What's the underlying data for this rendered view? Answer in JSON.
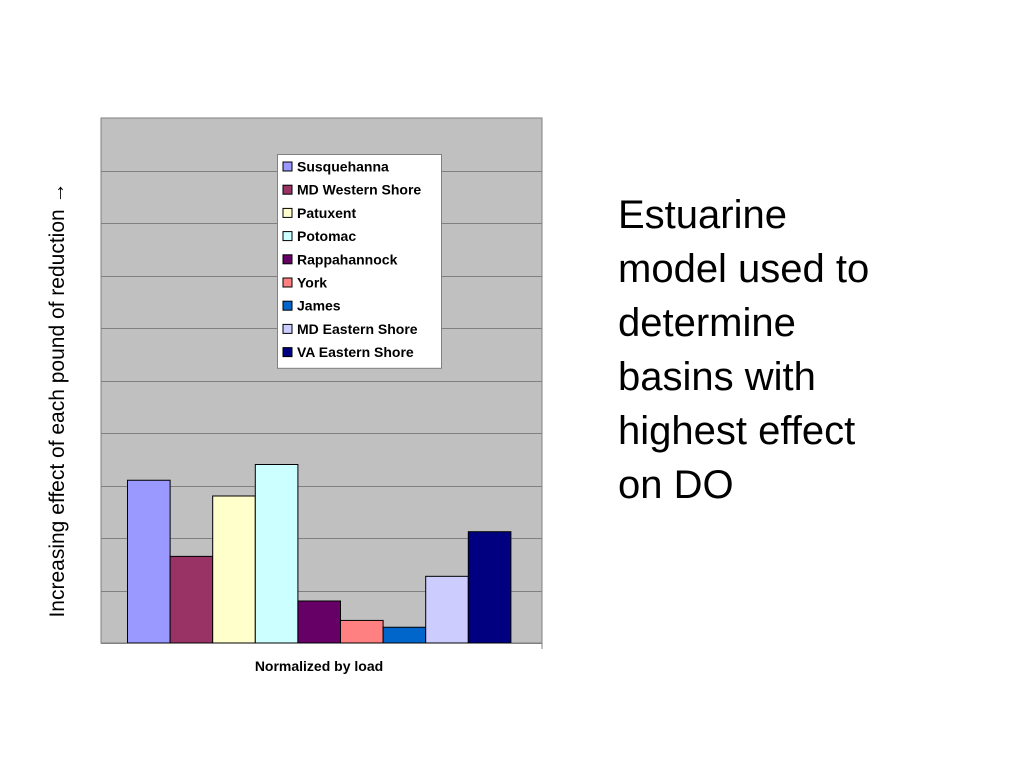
{
  "side_text": {
    "lines": [
      "Estuarine",
      "model used to",
      "determine",
      "basins with",
      "highest effect",
      "on DO"
    ]
  },
  "chart_data": {
    "type": "bar",
    "categories": [
      "Normalized by load"
    ],
    "xlabel": "Normalized by load",
    "ylabel": "Increasing effect of each pound of reduction →",
    "ylim": [
      0,
      10
    ],
    "grid": true,
    "legend_position": "top-center",
    "background_color": "#c0c0c0",
    "series": [
      {
        "name": "Susquehanna",
        "values": [
          3.1
        ],
        "color": "#9999ff"
      },
      {
        "name": "MD Western Shore",
        "values": [
          1.65
        ],
        "color": "#993366"
      },
      {
        "name": "Patuxent",
        "values": [
          2.8
        ],
        "color": "#ffffcc"
      },
      {
        "name": "Potomac",
        "values": [
          3.4
        ],
        "color": "#ccffff"
      },
      {
        "name": "Rappahannock",
        "values": [
          0.8
        ],
        "color": "#660066"
      },
      {
        "name": "York",
        "values": [
          0.43
        ],
        "color": "#ff8080"
      },
      {
        "name": "James",
        "values": [
          0.3
        ],
        "color": "#0066cc"
      },
      {
        "name": "MD Eastern Shore",
        "values": [
          1.27
        ],
        "color": "#ccccff"
      },
      {
        "name": "VA Eastern Shore",
        "values": [
          2.12
        ],
        "color": "#000080"
      }
    ]
  }
}
